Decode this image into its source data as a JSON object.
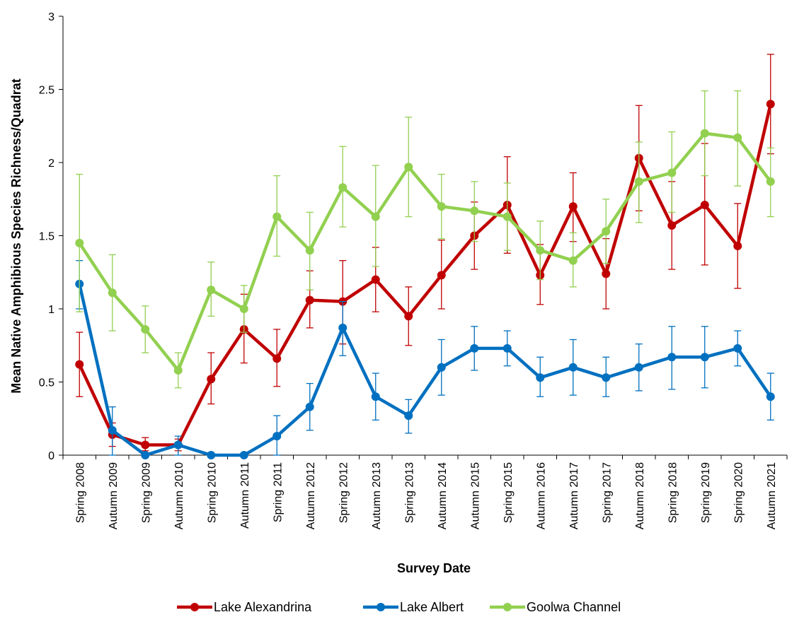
{
  "chart_data": {
    "type": "line",
    "title": "",
    "xlabel": "Survey Date",
    "ylabel": "Mean Native Amphibious Species Richness/Quadrat",
    "ylim": [
      0,
      3
    ],
    "yticks": [
      0,
      0.5,
      1,
      1.5,
      2,
      2.5,
      3
    ],
    "ytick_labels": [
      "0",
      "0.5",
      "1",
      "1.5",
      "2",
      "2.5",
      "3"
    ],
    "grid": false,
    "legend_position": "bottom",
    "categories": [
      "Spring 2008",
      "Autumn 2009",
      "Spring 2009",
      "Autumn 2010",
      "Spring 2010",
      "Autumn 2011",
      "Spring 2011",
      "Autumn 2012",
      "Spring 2012",
      "Autumn 2013",
      "Spring 2013",
      "Autumn 2014",
      "Autumn 2015",
      "Spring 2015",
      "Autumn 2016",
      "Autumn 2017",
      "Spring 2017",
      "Autumn 2018",
      "Spring 2018",
      "Spring 2019",
      "Spring 2020",
      "Autumn 2021"
    ],
    "series": [
      {
        "name": "Lake Alexandrina",
        "color": "#C00000",
        "values": [
          0.62,
          0.14,
          0.07,
          0.07,
          0.52,
          0.86,
          0.66,
          1.06,
          1.05,
          1.2,
          0.95,
          1.23,
          1.5,
          1.71,
          1.23,
          1.7,
          1.24,
          2.03,
          1.57,
          1.71,
          1.43,
          2.4
        ],
        "err_upper": [
          0.84,
          0.22,
          0.12,
          0.11,
          0.7,
          1.1,
          0.86,
          1.26,
          1.33,
          1.42,
          1.15,
          1.47,
          1.73,
          2.04,
          1.44,
          1.93,
          1.48,
          2.39,
          1.87,
          2.13,
          1.72,
          2.74
        ],
        "err_lower": [
          0.4,
          0.06,
          0.03,
          0.03,
          0.35,
          0.63,
          0.47,
          0.87,
          0.76,
          0.98,
          0.75,
          1.0,
          1.27,
          1.38,
          1.03,
          1.46,
          1.0,
          1.67,
          1.27,
          1.3,
          1.14,
          2.06
        ]
      },
      {
        "name": "Lake Albert",
        "color": "#0070C0",
        "values": [
          1.17,
          0.17,
          0.0,
          0.07,
          0.0,
          0.0,
          0.13,
          0.33,
          0.87,
          0.4,
          0.27,
          0.6,
          0.73,
          0.73,
          0.53,
          0.6,
          0.53,
          0.6,
          0.67,
          0.67,
          0.73,
          0.4
        ],
        "err_upper": [
          1.33,
          0.33,
          0.0,
          0.13,
          0.0,
          0.0,
          0.27,
          0.49,
          1.05,
          0.56,
          0.38,
          0.79,
          0.88,
          0.85,
          0.67,
          0.79,
          0.67,
          0.76,
          0.88,
          0.88,
          0.85,
          0.56
        ],
        "err_lower": [
          1.0,
          0.0,
          0.0,
          0.0,
          0.0,
          0.0,
          0.0,
          0.17,
          0.68,
          0.24,
          0.15,
          0.41,
          0.58,
          0.61,
          0.4,
          0.41,
          0.4,
          0.44,
          0.45,
          0.46,
          0.61,
          0.24
        ]
      },
      {
        "name": "Goolwa Channel",
        "color": "#92D050",
        "values": [
          1.45,
          1.11,
          0.86,
          0.58,
          1.13,
          1.0,
          1.63,
          1.4,
          1.83,
          1.63,
          1.97,
          1.7,
          1.67,
          1.63,
          1.4,
          1.33,
          1.53,
          1.87,
          1.93,
          2.2,
          2.17,
          1.87
        ],
        "err_upper": [
          1.92,
          1.37,
          1.02,
          0.7,
          1.32,
          1.16,
          1.91,
          1.66,
          2.11,
          1.98,
          2.31,
          1.92,
          1.87,
          1.86,
          1.6,
          1.52,
          1.75,
          2.14,
          2.21,
          2.49,
          2.49,
          2.1
        ],
        "err_lower": [
          0.98,
          0.85,
          0.7,
          0.46,
          0.95,
          0.84,
          1.36,
          1.13,
          1.56,
          1.29,
          1.63,
          1.48,
          1.46,
          1.4,
          1.2,
          1.15,
          1.31,
          1.59,
          1.66,
          1.91,
          1.84,
          1.63
        ]
      }
    ]
  }
}
